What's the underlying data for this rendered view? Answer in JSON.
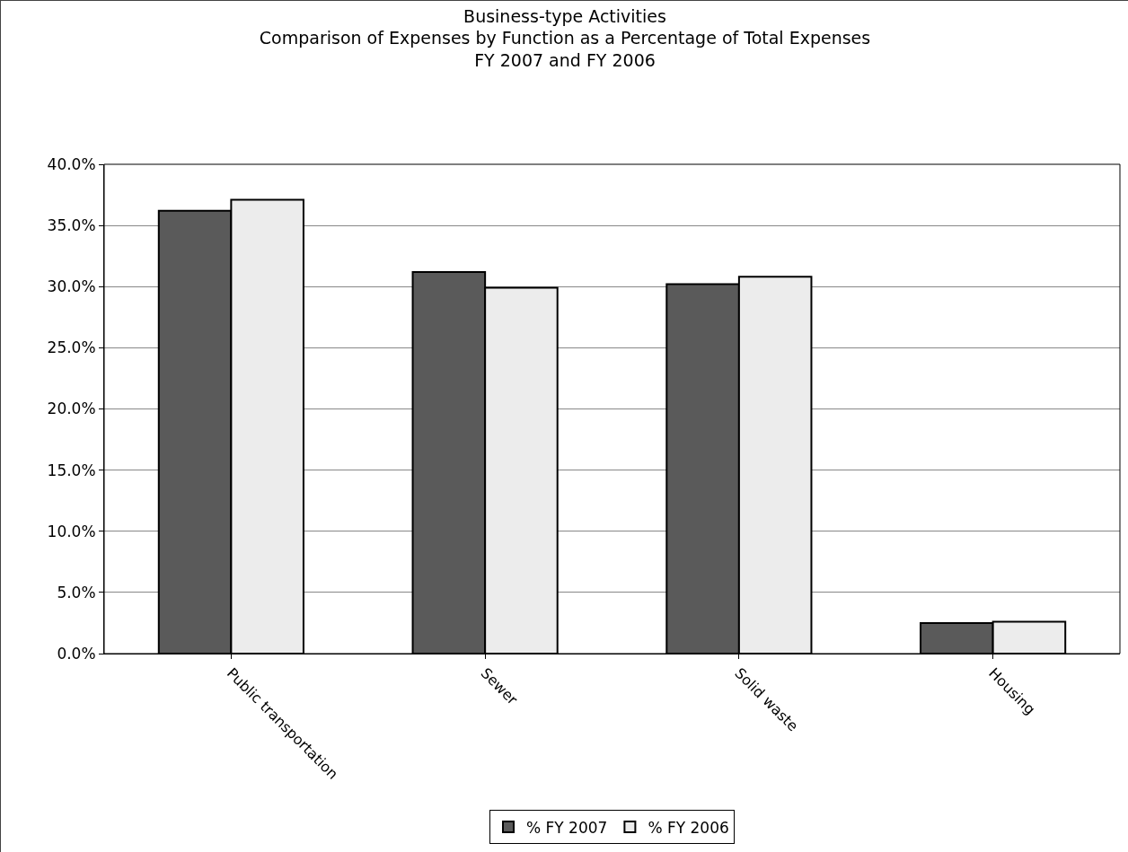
{
  "chart_data": {
    "type": "bar",
    "title": "Business-type Activities\nComparison of Expenses by Function as a Percentage of Total Expenses\nFY 2007 and FY 2006",
    "categories": [
      "Public transportation",
      "Sewer",
      "Solid waste",
      "Housing"
    ],
    "series": [
      {
        "name": "% FY 2007",
        "color": "#5a5a5a",
        "values": [
          36.2,
          31.2,
          30.2,
          2.5
        ]
      },
      {
        "name": "% FY 2006",
        "color": "#ececec",
        "values": [
          37.1,
          29.9,
          30.8,
          2.6
        ]
      }
    ],
    "ylim": [
      0,
      40
    ],
    "yticks": [
      {
        "value": 0,
        "label": "0.0%"
      },
      {
        "value": 5,
        "label": "5.0%"
      },
      {
        "value": 10,
        "label": "10.0%"
      },
      {
        "value": 15,
        "label": "15.0%"
      },
      {
        "value": 20,
        "label": "20.0%"
      },
      {
        "value": 25,
        "label": "25.0%"
      },
      {
        "value": 30,
        "label": "30.0%"
      },
      {
        "value": 35,
        "label": "35.0%"
      },
      {
        "value": 40,
        "label": "40.0%"
      }
    ],
    "grid": "y",
    "legend": "bottom"
  }
}
